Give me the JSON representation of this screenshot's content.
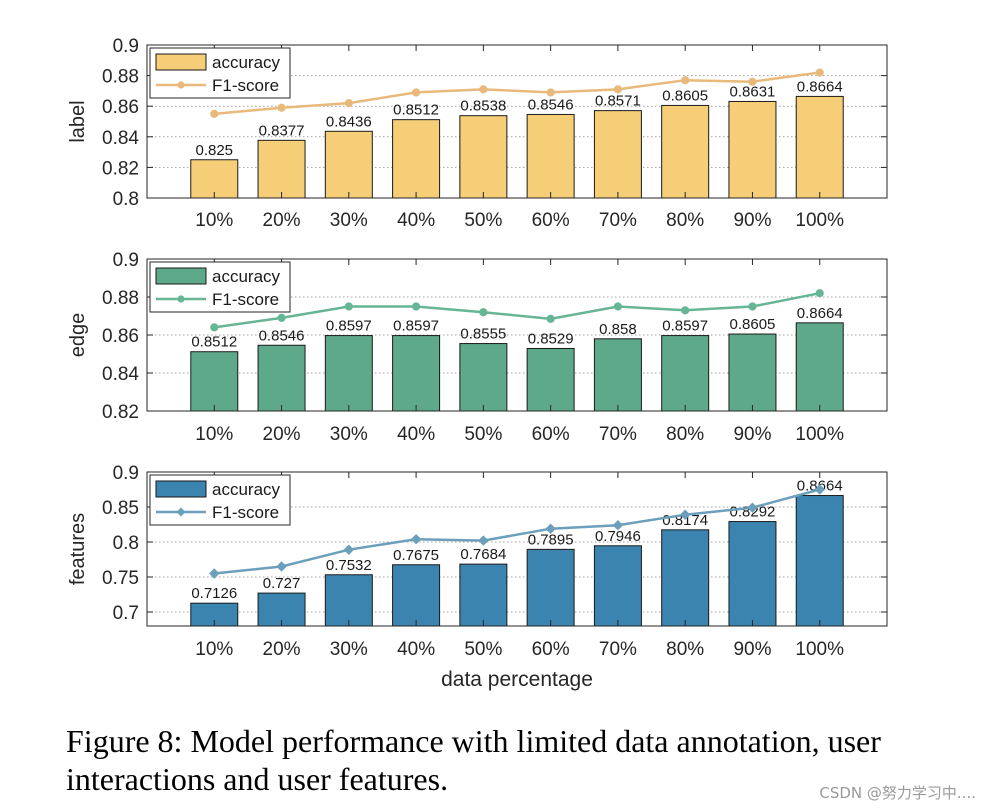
{
  "chart_data": [
    {
      "type": "bar",
      "ylabel": "label",
      "xlabel": "",
      "categories": [
        "10%",
        "20%",
        "30%",
        "40%",
        "50%",
        "60%",
        "70%",
        "80%",
        "90%",
        "100%"
      ],
      "ylim": [
        0.8,
        0.9
      ],
      "yticks": [
        "0.8",
        "0.82",
        "0.84",
        "0.86",
        "0.88",
        "0.9"
      ],
      "grid": "horizontal dotted",
      "legend_position": "top-left",
      "series": [
        {
          "name": "accuracy",
          "kind": "bar",
          "color": "#F5CE77",
          "values": [
            0.825,
            0.8377,
            0.8436,
            0.8512,
            0.8538,
            0.8546,
            0.8571,
            0.8605,
            0.8631,
            0.8664
          ],
          "labels": [
            "0.825",
            "0.8377",
            "0.8436",
            "0.8512",
            "0.8538",
            "0.8546",
            "0.8571",
            "0.8605",
            "0.8631",
            "0.8664"
          ]
        },
        {
          "name": "F1-score",
          "kind": "line",
          "marker": "circle",
          "color": "#E8B97A",
          "values": [
            0.855,
            0.859,
            0.862,
            0.869,
            0.871,
            0.869,
            0.871,
            0.877,
            0.876,
            0.882
          ]
        }
      ]
    },
    {
      "type": "bar",
      "ylabel": "edge",
      "xlabel": "",
      "categories": [
        "10%",
        "20%",
        "30%",
        "40%",
        "50%",
        "60%",
        "70%",
        "80%",
        "90%",
        "100%"
      ],
      "ylim": [
        0.82,
        0.9
      ],
      "yticks": [
        "0.82",
        "0.84",
        "0.86",
        "0.88",
        "0.9"
      ],
      "grid": "horizontal dotted",
      "legend_position": "top-left",
      "series": [
        {
          "name": "accuracy",
          "kind": "bar",
          "color": "#5EA989",
          "values": [
            0.8512,
            0.8546,
            0.8597,
            0.8597,
            0.8555,
            0.8529,
            0.858,
            0.8597,
            0.8605,
            0.8664
          ],
          "labels": [
            "0.8512",
            "0.8546",
            "0.8597",
            "0.8597",
            "0.8555",
            "0.8529",
            "0.858",
            "0.8597",
            "0.8605",
            "0.8664"
          ]
        },
        {
          "name": "F1-score",
          "kind": "line",
          "marker": "circle",
          "color": "#66B595",
          "values": [
            0.864,
            0.869,
            0.875,
            0.875,
            0.872,
            0.8685,
            0.875,
            0.873,
            0.875,
            0.882
          ]
        }
      ]
    },
    {
      "type": "bar",
      "ylabel": "features",
      "xlabel": "data percentage",
      "categories": [
        "10%",
        "20%",
        "30%",
        "40%",
        "50%",
        "60%",
        "70%",
        "80%",
        "90%",
        "100%"
      ],
      "ylim": [
        0.68,
        0.9
      ],
      "yticks": [
        "0.7",
        "0.75",
        "0.8",
        "0.85",
        "0.9"
      ],
      "grid": "horizontal dotted",
      "legend_position": "top-left",
      "series": [
        {
          "name": "accuracy",
          "kind": "bar",
          "color": "#3B84B0",
          "values": [
            0.7126,
            0.727,
            0.7532,
            0.7675,
            0.7684,
            0.7895,
            0.7946,
            0.8174,
            0.8292,
            0.8664
          ],
          "labels": [
            "0.7126",
            "0.727",
            "0.7532",
            "0.7675",
            "0.7684",
            "0.7895",
            "0.7946",
            "0.8174",
            "0.8292",
            "0.8664"
          ]
        },
        {
          "name": "F1-score",
          "kind": "line",
          "marker": "diamond",
          "color": "#6B9FBC",
          "values": [
            0.755,
            0.765,
            0.789,
            0.804,
            0.802,
            0.819,
            0.824,
            0.839,
            0.849,
            0.875
          ]
        }
      ]
    }
  ],
  "caption": "Figure 8: Model performance with limited data annotation, user interactions and user features.",
  "watermark": "CSDN @努力学习中...."
}
